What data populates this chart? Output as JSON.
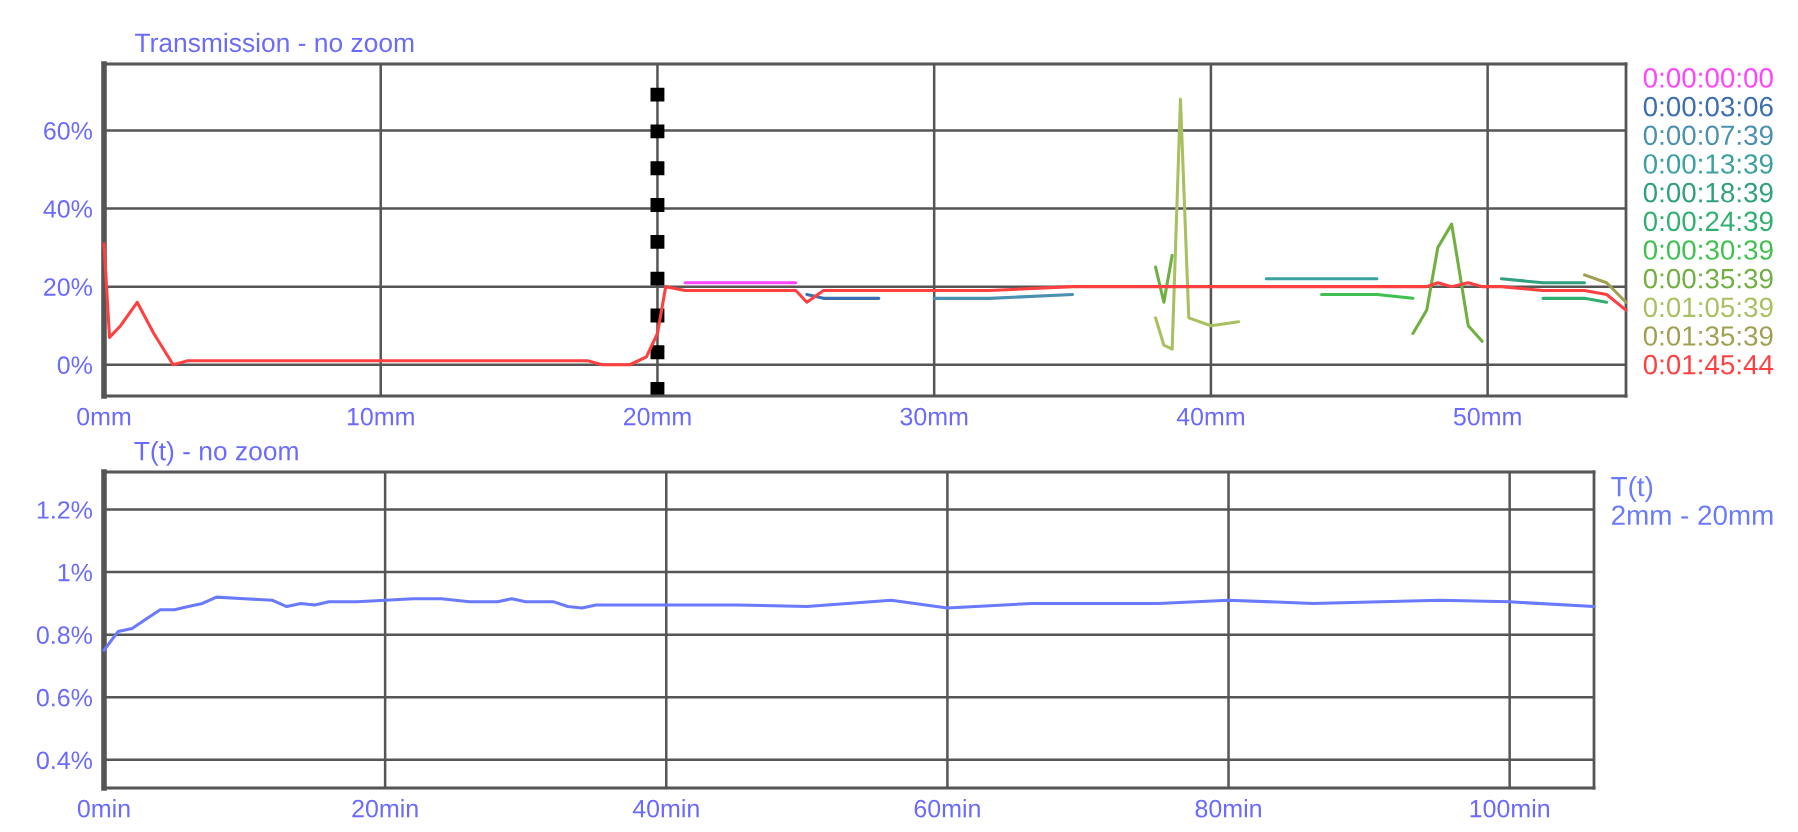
{
  "chart_data": [
    {
      "type": "line",
      "title": "Transmission - no zoom",
      "x": [
        0,
        0.2,
        0.6,
        1.2,
        1.8,
        2.5,
        3,
        5,
        10,
        15,
        17.5,
        18,
        19,
        19.6,
        20,
        20.3,
        21,
        23,
        25,
        25.4,
        26,
        28,
        30,
        32,
        35,
        37,
        38,
        38.3,
        38.6,
        38.9,
        39.2,
        40,
        41,
        42,
        44,
        46,
        47.3,
        47.8,
        48.2,
        48.7,
        49.3,
        49.8,
        50.5,
        52,
        53.5,
        54.3,
        55
      ],
      "series": [
        {
          "name": "0:00:00:00",
          "color": "#ff44ff",
          "values": [
            null,
            null,
            null,
            null,
            null,
            null,
            null,
            null,
            null,
            null,
            null,
            null,
            null,
            null,
            null,
            null,
            21,
            21,
            21,
            null,
            null,
            null,
            null,
            null,
            null,
            null,
            null,
            null,
            null,
            null,
            null,
            null,
            null,
            null,
            null,
            null,
            null,
            null,
            null,
            null,
            null,
            null,
            null,
            null,
            null,
            null,
            null
          ]
        },
        {
          "name": "0:00:03:06",
          "color": "#3b6fb0",
          "values": [
            null,
            null,
            null,
            null,
            null,
            null,
            null,
            null,
            null,
            null,
            null,
            null,
            null,
            null,
            null,
            null,
            null,
            null,
            null,
            18,
            17,
            17,
            null,
            null,
            null,
            null,
            null,
            null,
            null,
            null,
            null,
            null,
            null,
            null,
            null,
            null,
            null,
            null,
            null,
            null,
            null,
            null,
            null,
            null,
            null,
            null,
            null
          ]
        },
        {
          "name": "0:00:07:39",
          "color": "#4a90b0",
          "values": [
            null,
            null,
            null,
            null,
            null,
            null,
            null,
            null,
            null,
            null,
            null,
            null,
            null,
            null,
            null,
            null,
            null,
            null,
            null,
            null,
            null,
            null,
            17,
            17,
            18,
            null,
            null,
            null,
            null,
            null,
            null,
            null,
            null,
            null,
            null,
            null,
            null,
            null,
            null,
            null,
            null,
            null,
            null,
            null,
            null,
            null,
            null
          ]
        },
        {
          "name": "0:00:13:39",
          "color": "#3aa0a0",
          "values": [
            null,
            null,
            null,
            null,
            null,
            null,
            null,
            null,
            null,
            null,
            null,
            null,
            null,
            null,
            null,
            null,
            null,
            null,
            null,
            null,
            null,
            null,
            null,
            null,
            null,
            null,
            null,
            null,
            null,
            null,
            null,
            null,
            null,
            22,
            22,
            22,
            null,
            null,
            null,
            null,
            null,
            null,
            null,
            null,
            null,
            null,
            null
          ]
        },
        {
          "name": "0:00:18:39",
          "color": "#30a080",
          "values": [
            null,
            null,
            null,
            null,
            null,
            null,
            null,
            null,
            null,
            null,
            null,
            null,
            null,
            null,
            null,
            null,
            null,
            null,
            null,
            null,
            null,
            null,
            null,
            null,
            null,
            null,
            null,
            null,
            null,
            null,
            null,
            null,
            null,
            null,
            null,
            null,
            null,
            null,
            null,
            null,
            null,
            null,
            22,
            21,
            21,
            null,
            null
          ]
        },
        {
          "name": "0:00:24:39",
          "color": "#30b070",
          "values": [
            null,
            null,
            null,
            null,
            null,
            null,
            null,
            null,
            null,
            null,
            null,
            null,
            null,
            null,
            null,
            null,
            null,
            null,
            null,
            null,
            null,
            null,
            null,
            null,
            null,
            null,
            null,
            null,
            null,
            null,
            null,
            null,
            null,
            null,
            null,
            null,
            null,
            null,
            null,
            null,
            null,
            null,
            null,
            17,
            17,
            16,
            null
          ]
        },
        {
          "name": "0:00:30:39",
          "color": "#40c050",
          "values": [
            null,
            null,
            null,
            null,
            null,
            null,
            null,
            null,
            null,
            null,
            null,
            null,
            null,
            null,
            null,
            null,
            null,
            null,
            null,
            null,
            null,
            null,
            null,
            null,
            null,
            null,
            null,
            null,
            null,
            null,
            null,
            null,
            null,
            null,
            18,
            18,
            17,
            null,
            null,
            null,
            null,
            null,
            null,
            null,
            null,
            null,
            null
          ]
        },
        {
          "name": "0:00:35:39",
          "color": "#70b040",
          "values": [
            null,
            null,
            null,
            null,
            null,
            null,
            null,
            null,
            null,
            null,
            null,
            null,
            null,
            null,
            null,
            null,
            null,
            null,
            null,
            null,
            null,
            null,
            null,
            null,
            null,
            null,
            25,
            16,
            28,
            null,
            null,
            null,
            null,
            null,
            null,
            null,
            8,
            14,
            30,
            36,
            10,
            6,
            null,
            null,
            null,
            null,
            null
          ]
        },
        {
          "name": "0:01:05:39",
          "color": "#a8c060",
          "values": [
            null,
            null,
            null,
            null,
            null,
            null,
            null,
            null,
            null,
            null,
            null,
            null,
            null,
            null,
            null,
            null,
            null,
            null,
            null,
            null,
            null,
            null,
            null,
            null,
            null,
            null,
            12,
            5,
            4,
            68,
            12,
            10,
            11,
            null,
            null,
            null,
            null,
            null,
            null,
            null,
            null,
            null,
            null,
            null,
            null,
            null,
            null
          ]
        },
        {
          "name": "0:01:35:39",
          "color": "#a0a050",
          "values": [
            null,
            null,
            null,
            null,
            null,
            null,
            null,
            null,
            null,
            null,
            null,
            null,
            null,
            null,
            null,
            null,
            null,
            null,
            null,
            null,
            null,
            null,
            null,
            null,
            null,
            null,
            null,
            null,
            null,
            null,
            null,
            null,
            null,
            null,
            null,
            null,
            null,
            null,
            null,
            null,
            null,
            null,
            null,
            null,
            23,
            21,
            16
          ]
        },
        {
          "name": "0:01:45:44",
          "color": "#ff4040",
          "values": [
            31,
            7,
            10,
            16,
            8,
            0,
            1,
            1,
            1,
            1,
            1,
            0,
            0,
            2,
            8,
            20,
            19,
            19,
            19,
            16,
            19,
            19,
            19,
            19,
            20,
            20,
            20,
            20,
            20,
            20,
            20,
            20,
            20,
            20,
            20,
            20,
            20,
            20,
            21,
            20,
            21,
            20,
            20,
            19,
            19,
            18,
            14
          ]
        }
      ],
      "xlim": [
        0,
        55
      ],
      "xticks": [
        {
          "value": 0,
          "label": "0mm"
        },
        {
          "value": 10,
          "label": "10mm"
        },
        {
          "value": 20,
          "label": "20mm"
        },
        {
          "value": 30,
          "label": "30mm"
        },
        {
          "value": 40,
          "label": "40mm"
        },
        {
          "value": 50,
          "label": "50mm"
        }
      ],
      "ylim": [
        -8,
        77
      ],
      "yticks": [
        {
          "value": 0,
          "label": "0%"
        },
        {
          "value": 20,
          "label": "20%"
        },
        {
          "value": 40,
          "label": "40%"
        },
        {
          "value": 60,
          "label": "60%"
        }
      ],
      "ref_lines": [
        {
          "axis": "x",
          "value": 20,
          "color": "#000000",
          "line_style": "dotted"
        }
      ],
      "grid": true,
      "legend": "right"
    },
    {
      "type": "line",
      "title": "T(t) - no zoom",
      "legend_title": "T(t)",
      "x": [
        0,
        0.5,
        1,
        2,
        3,
        4,
        5,
        6,
        7,
        8,
        10,
        12,
        13,
        14,
        15,
        16,
        18,
        20,
        22,
        24,
        26,
        28,
        29,
        30,
        32,
        33,
        34,
        35,
        40,
        45,
        50,
        56,
        60,
        66,
        75,
        80,
        86,
        95,
        100,
        106
      ],
      "series": [
        {
          "name": "2mm - 20mm",
          "color": "#6a7aff",
          "values": [
            0.75,
            0.78,
            0.81,
            0.82,
            0.85,
            0.88,
            0.88,
            0.89,
            0.9,
            0.92,
            0.915,
            0.91,
            0.89,
            0.9,
            0.895,
            0.905,
            0.905,
            0.91,
            0.915,
            0.915,
            0.905,
            0.905,
            0.915,
            0.905,
            0.905,
            0.89,
            0.885,
            0.895,
            0.895,
            0.895,
            0.89,
            0.91,
            0.885,
            0.9,
            0.9,
            0.91,
            0.9,
            0.91,
            0.905,
            0.89
          ]
        }
      ],
      "xlim": [
        0,
        106
      ],
      "xticks": [
        {
          "value": 0,
          "label": "0min"
        },
        {
          "value": 20,
          "label": "20min"
        },
        {
          "value": 40,
          "label": "40min"
        },
        {
          "value": 60,
          "label": "60min"
        },
        {
          "value": 80,
          "label": "80min"
        },
        {
          "value": 100,
          "label": "100min"
        }
      ],
      "ylim": [
        0.31,
        1.32
      ],
      "yticks": [
        {
          "value": 0.4,
          "label": "0.4%"
        },
        {
          "value": 0.6,
          "label": "0.6%"
        },
        {
          "value": 0.8,
          "label": "0.8%"
        },
        {
          "value": 1,
          "label": "1%"
        },
        {
          "value": 1.2,
          "label": "1.2%"
        }
      ],
      "grid": true,
      "legend": "right"
    }
  ]
}
